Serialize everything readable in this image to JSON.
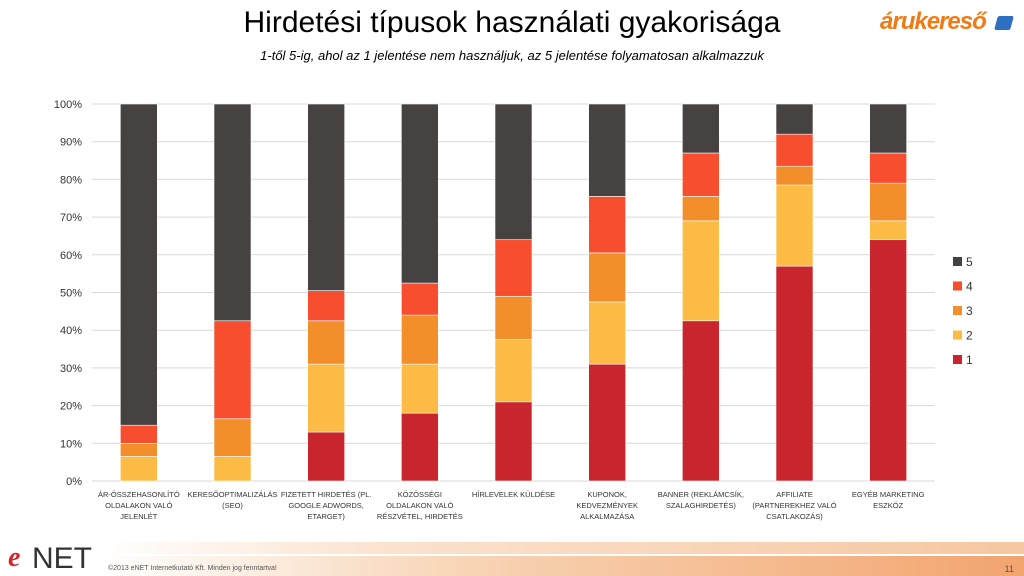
{
  "header": {
    "title": "Hirdetési típusok használati gyakorisága",
    "subtitle": "1-től 5-ig, ahol az 1 jelentése nem használjuk, az 5 jelentése folyamatosan alkalmazzuk"
  },
  "logo_arukereso": "árukereső",
  "logo_enet": {
    "e": "e",
    "net": "NET"
  },
  "footer": {
    "copyright": "©2013 eNET Internetkutató Kft. Minden jog fenntartva!",
    "page": "11"
  },
  "chart_data": {
    "type": "bar",
    "stacked": true,
    "ylim": [
      0,
      100
    ],
    "yticks": [
      "0%",
      "10%",
      "20%",
      "30%",
      "40%",
      "50%",
      "60%",
      "70%",
      "80%",
      "90%",
      "100%"
    ],
    "grid": true,
    "legend_position": "right",
    "categories": [
      [
        "ÁR-ÖSSZEHASONLÍTÓ",
        "OLDALAKON VALÓ",
        "JELENLÉT"
      ],
      [
        "KERESŐOPTIMALIZÁLÁS",
        "(SEO)"
      ],
      [
        "FIZETETT HIRDETÉS (PL.",
        "GOOGLE ADWORDS,",
        "ETARGET)"
      ],
      [
        "KÖZÖSSÉGI",
        "OLDALAKON VALÓ",
        "RÉSZVÉTEL, HIRDETÉS"
      ],
      [
        "HÍRLEVELEK KÜLDÉSE"
      ],
      [
        "KUPONOK,",
        "KEDVEZMÉNYEK",
        "ALKALMAZÁSA"
      ],
      [
        "BANNER (REKLÁMCSÍK,",
        "SZALAGHIRDETÉS)"
      ],
      [
        "AFFILIATE",
        "(PARTNEREKHEZ VALÓ",
        "CSATLAKOZÁS)"
      ],
      [
        "EGYÉB MARKETING",
        "ESZKÖZ"
      ]
    ],
    "series": [
      {
        "name": "1",
        "color": "#c8262c",
        "values": [
          0,
          0,
          13,
          18,
          21,
          31,
          42.5,
          57,
          64
        ]
      },
      {
        "name": "2",
        "color": "#fbbb44",
        "values": [
          6.5,
          6.5,
          18,
          13,
          16.5,
          16.5,
          26.5,
          21.5,
          5
        ]
      },
      {
        "name": "3",
        "color": "#f38f2a",
        "values": [
          3.5,
          10,
          11.5,
          13,
          11.5,
          13,
          6.5,
          5,
          10
        ]
      },
      {
        "name": "4",
        "color": "#f64e2e",
        "values": [
          4.8,
          26,
          8,
          8.5,
          15,
          15,
          11.5,
          8.5,
          8
        ]
      },
      {
        "name": "5",
        "color": "#464242",
        "values": [
          85.2,
          57.5,
          49.5,
          47.5,
          36,
          24.5,
          13,
          8,
          13
        ]
      }
    ]
  }
}
